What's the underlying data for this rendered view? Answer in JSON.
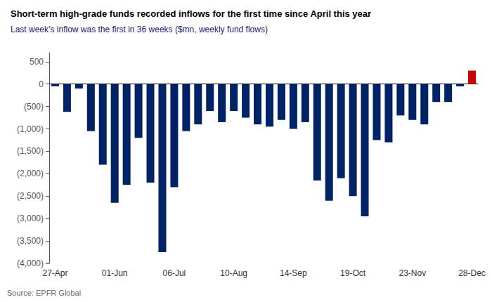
{
  "chart_data": {
    "type": "bar",
    "title": "Short-term high-grade funds recorded inflows for the first time since April this year",
    "subtitle": "Last week’s inflow was the first in 36 weeks ($mn, weekly fund flows)",
    "source": "Source: EPFR Global",
    "categories": [
      "27-Apr",
      null,
      null,
      null,
      null,
      "01-Jun",
      null,
      null,
      null,
      null,
      "06-Jul",
      null,
      null,
      null,
      null,
      "10-Aug",
      null,
      null,
      null,
      null,
      "14-Sep",
      null,
      null,
      null,
      null,
      "19-Oct",
      null,
      null,
      null,
      null,
      "23-Nov",
      null,
      null,
      null,
      null,
      "28-Dec"
    ],
    "values": [
      -50,
      -620,
      -100,
      -1050,
      -1800,
      -2650,
      -2250,
      -1200,
      -2200,
      -3750,
      -2300,
      -1050,
      -900,
      -600,
      -850,
      -600,
      -750,
      -900,
      -950,
      -800,
      -1000,
      -850,
      -2150,
      -2600,
      -2100,
      -2500,
      -2950,
      -1250,
      -1300,
      -700,
      -800,
      -900,
      -400,
      -400,
      -50,
      300
    ],
    "colors": [
      "#002366",
      "#002366",
      "#002366",
      "#002366",
      "#002366",
      "#002366",
      "#002366",
      "#002366",
      "#002366",
      "#002366",
      "#002366",
      "#002366",
      "#002366",
      "#002366",
      "#002366",
      "#002366",
      "#002366",
      "#002366",
      "#002366",
      "#002366",
      "#002366",
      "#002366",
      "#002366",
      "#002366",
      "#002366",
      "#002366",
      "#002366",
      "#002366",
      "#002366",
      "#002366",
      "#002366",
      "#002366",
      "#002366",
      "#002366",
      "#002366",
      "#cc0000"
    ],
    "ylim": [
      -4000,
      700
    ],
    "yticks": [
      500,
      0,
      {
        "value": -500,
        "label": "(500)"
      },
      {
        "value": -1000,
        "label": "(1,000)"
      },
      {
        "value": -1500,
        "label": "(1,500)"
      },
      {
        "value": -2000,
        "label": "(2,000)"
      },
      {
        "value": -2500,
        "label": "(2,500)"
      },
      {
        "value": -3000,
        "label": "(3,000)"
      },
      {
        "value": -3500,
        "label": "(3,500)"
      },
      {
        "value": -4000,
        "label": "(4,000)"
      }
    ],
    "grid": false
  }
}
